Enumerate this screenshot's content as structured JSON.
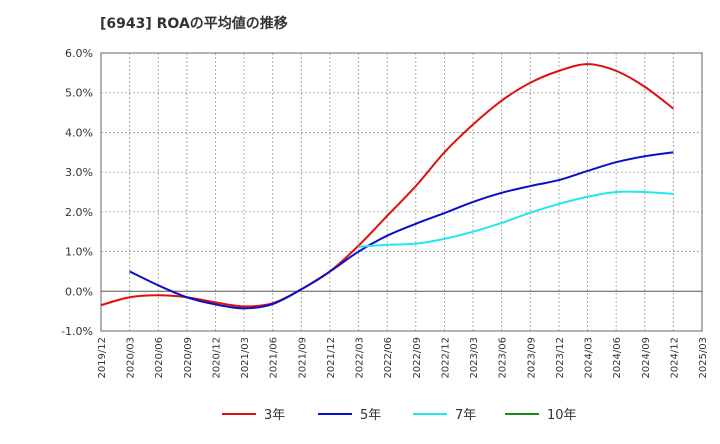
{
  "chart_data": {
    "type": "line",
    "title": "[6943]  ROAの平均値の推移",
    "xlabel": "",
    "ylabel": "",
    "ylim": [
      -1.0,
      6.0
    ],
    "y_ticks": [
      -1.0,
      0.0,
      1.0,
      2.0,
      3.0,
      4.0,
      5.0,
      6.0
    ],
    "y_tick_labels": [
      "-1.0%",
      "0.0%",
      "1.0%",
      "2.0%",
      "3.0%",
      "4.0%",
      "5.0%",
      "6.0%"
    ],
    "x_tick_labels": [
      "2019/12",
      "2020/03",
      "2020/06",
      "2020/09",
      "2020/12",
      "2021/03",
      "2021/06",
      "2021/09",
      "2021/12",
      "2022/03",
      "2022/06",
      "2022/09",
      "2022/12",
      "2023/03",
      "2023/06",
      "2023/09",
      "2023/12",
      "2024/03",
      "2024/06",
      "2024/09",
      "2024/12",
      "2025/03"
    ],
    "grid": true,
    "legend_position": "bottom",
    "series": [
      {
        "name": "3年",
        "color": "#e01010",
        "x": [
          "2019/12",
          "2020/03",
          "2020/06",
          "2020/09",
          "2020/12",
          "2021/03",
          "2021/06",
          "2021/09",
          "2021/12",
          "2022/03",
          "2022/06",
          "2022/09",
          "2022/12",
          "2023/03",
          "2023/06",
          "2023/09",
          "2023/12",
          "2024/03",
          "2024/06",
          "2024/09",
          "2024/12"
        ],
        "values": [
          -0.35,
          -0.15,
          -0.1,
          -0.15,
          -0.28,
          -0.38,
          -0.3,
          0.05,
          0.5,
          1.15,
          1.9,
          2.65,
          3.5,
          4.2,
          4.8,
          5.25,
          5.55,
          5.72,
          5.55,
          5.15,
          4.6
        ]
      },
      {
        "name": "5年",
        "color": "#0a10c8",
        "x": [
          "2020/03",
          "2020/06",
          "2020/09",
          "2020/12",
          "2021/03",
          "2021/06",
          "2021/09",
          "2021/12",
          "2022/03",
          "2022/06",
          "2022/09",
          "2022/12",
          "2023/03",
          "2023/06",
          "2023/09",
          "2023/12",
          "2024/03",
          "2024/06",
          "2024/09",
          "2024/12"
        ],
        "values": [
          0.5,
          0.15,
          -0.15,
          -0.33,
          -0.43,
          -0.32,
          0.05,
          0.5,
          1.0,
          1.4,
          1.7,
          1.97,
          2.25,
          2.48,
          2.65,
          2.8,
          3.03,
          3.25,
          3.4,
          3.5
        ]
      },
      {
        "name": "7年",
        "color": "#22e6ee",
        "x": [
          "2022/03",
          "2022/06",
          "2022/09",
          "2022/12",
          "2023/03",
          "2023/06",
          "2023/09",
          "2023/12",
          "2024/03",
          "2024/06",
          "2024/09",
          "2024/12"
        ],
        "values": [
          1.12,
          1.17,
          1.2,
          1.32,
          1.5,
          1.72,
          1.98,
          2.2,
          2.38,
          2.5,
          2.5,
          2.45
        ]
      },
      {
        "name": "10年",
        "color": "#1a8a1a",
        "x": [],
        "values": []
      }
    ]
  }
}
